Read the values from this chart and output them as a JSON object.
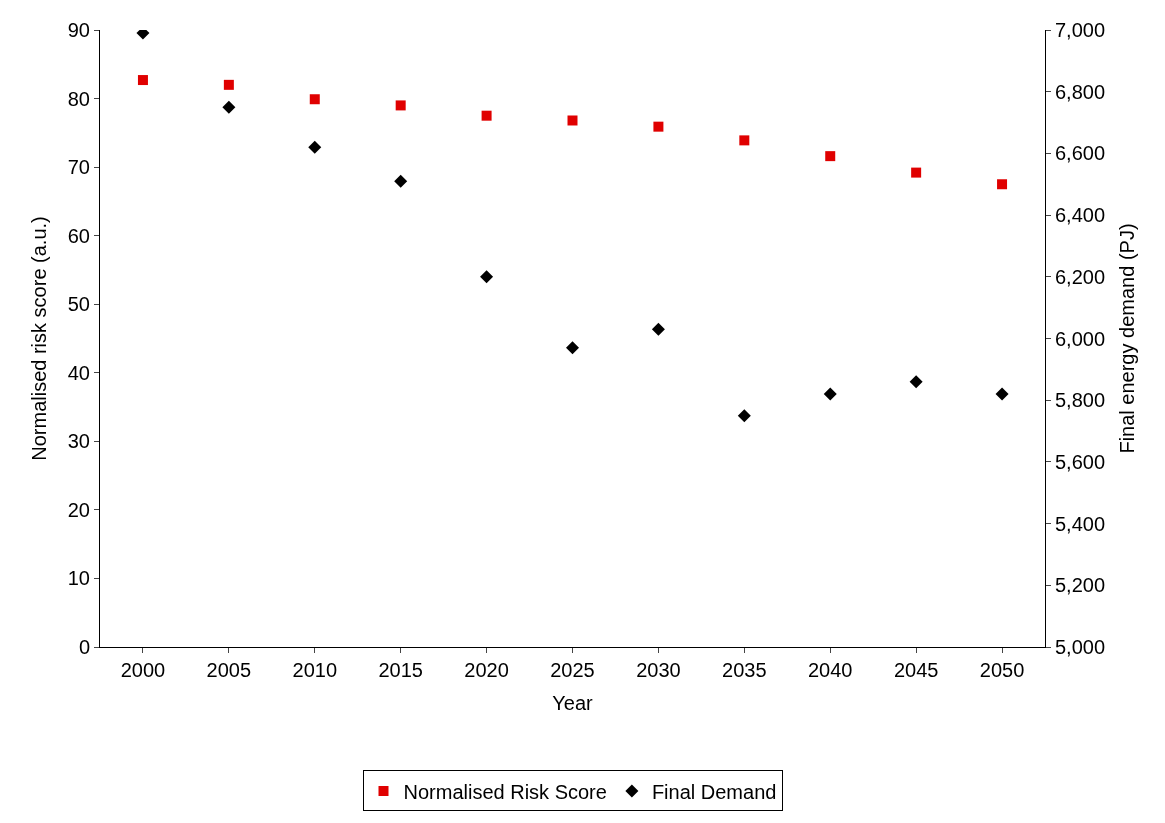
{
  "chart_data": {
    "type": "scatter",
    "xlabel": "Year",
    "ylabel": "Normalised risk score (a.u.)",
    "y2label": "Final energy demand (PJ)",
    "categories": [
      "2000",
      "2005",
      "2010",
      "2015",
      "2020",
      "2025",
      "2030",
      "2035",
      "2040",
      "2045",
      "2050"
    ],
    "series": [
      {
        "name": "Normalised Risk Score",
        "color": "#e00000",
        "marker": "square",
        "values": [
          82.7,
          82.0,
          79.9,
          79.0,
          77.5,
          76.8,
          75.9,
          73.9,
          71.6,
          69.2,
          67.5
        ]
      },
      {
        "name": "Final Demand",
        "color": "#000000",
        "marker": "diamond",
        "axis": "y2",
        "values": [
          6990,
          6750,
          6620,
          6510,
          6200,
          5970,
          6030,
          5750,
          5820,
          5860,
          5820
        ]
      }
    ],
    "ylim": [
      0,
      90
    ],
    "yticks": [
      0,
      10,
      20,
      30,
      40,
      50,
      60,
      70,
      80,
      90
    ],
    "y2lim": [
      5000,
      7000
    ],
    "y2ticks": [
      {
        "value": 5000,
        "label": "5,000"
      },
      {
        "value": 5200,
        "label": "5,200"
      },
      {
        "value": 5400,
        "label": "5,400"
      },
      {
        "value": 5600,
        "label": "5,600"
      },
      {
        "value": 5800,
        "label": "5,800"
      },
      {
        "value": 6000,
        "label": "6,000"
      },
      {
        "value": 6200,
        "label": "6,200"
      },
      {
        "value": 6400,
        "label": "6,400"
      },
      {
        "value": 6600,
        "label": "6,600"
      },
      {
        "value": 6800,
        "label": "6,800"
      },
      {
        "value": 7000,
        "label": "7,000"
      }
    ],
    "grid": false,
    "legend": "bottom"
  }
}
